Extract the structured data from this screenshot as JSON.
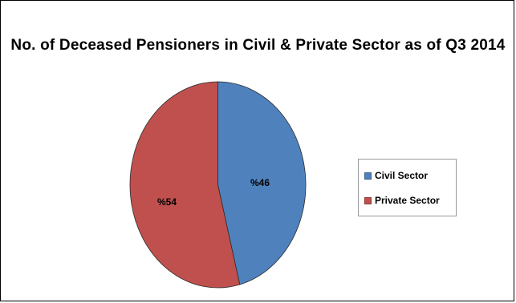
{
  "chart_data": {
    "type": "pie",
    "title": "No. of Deceased Pensioners in Civil & Private Sector as of Q3 2014",
    "slices": [
      {
        "name": "Civil Sector",
        "value": 46,
        "label": "%46",
        "color": "#4f81bd"
      },
      {
        "name": "Private Sector",
        "value": 54,
        "label": "%54",
        "color": "#c0504d"
      }
    ],
    "legend_position": "right",
    "start_angle": "top",
    "direction": "clockwise"
  }
}
